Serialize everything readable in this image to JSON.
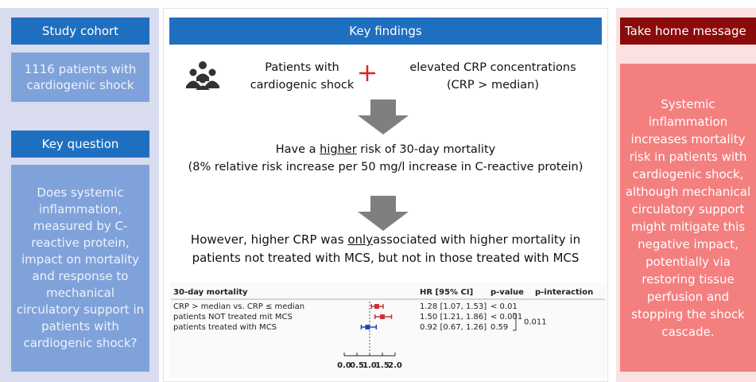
{
  "left": {
    "study_cohort": {
      "title": "Study cohort",
      "text": "1116 patients with cardiogenic shock"
    },
    "key_question": {
      "title": "Key question",
      "text": "Does systemic inflammation, measured by C-reactive protein, impact on mortality and response to mechanical circulatory support in patients with cardiogenic shock?"
    }
  },
  "middle": {
    "title": "Key findings",
    "patients": "Patients with cardiogenic shock",
    "crp": "elevated CRP concentrations (CRP > median)",
    "finding1": {
      "before": "Have a ",
      "emphasis": "higher",
      "after": " risk of 30-day mortality",
      "note": "(8% relative risk increase per 50 mg/l increase in C-reactive protein)"
    },
    "finding2": {
      "before": "However, higher CRP was ",
      "emphasis": "only",
      "after": "associated with higher mortality in patients not treated with MCS, but not in those treated with MCS"
    }
  },
  "forest_plot": {
    "columns": [
      "30-day mortality",
      "HR  [95% CI]",
      "p-value",
      "p-interaction"
    ],
    "rows": [
      {
        "label": "CRP > median vs. CRP ≤  median",
        "hr": 1.28,
        "ci": [
          1.07,
          1.53
        ],
        "hr_text": "1.28  [1.07, 1.53]",
        "p": "< 0.01",
        "color": "#c8323a"
      },
      {
        "label": "patients NOT treated mit MCS",
        "hr": 1.5,
        "ci": [
          1.21,
          1.86
        ],
        "hr_text": "1.50  [1.21, 1.86]",
        "p": "< 0.001",
        "color": "#c8323a"
      },
      {
        "label": "patients treated with MCS",
        "hr": 0.92,
        "ci": [
          0.67,
          1.26
        ],
        "hr_text": "0.92  [0.67, 1.26]",
        "p": "0.59",
        "color": "#2a3fc0"
      }
    ],
    "p_interaction": "0.011",
    "xlim": [
      0,
      2
    ],
    "xticks": [
      {
        "value": 0,
        "label": "0.0"
      },
      0.5,
      {
        "value": 1,
        "label": "1.0"
      },
      1.5,
      {
        "value": 2,
        "label": "2.0"
      }
    ],
    "reference_line": 1
  },
  "right": {
    "title": "Take home message",
    "text": "Systemic inflammation increases mortality risk in patients with cardiogenic shock, although mechanical circulatory support might mitigate this negative impact, potentially via restoring tissue perfusion and stopping the shock cascade."
  }
}
